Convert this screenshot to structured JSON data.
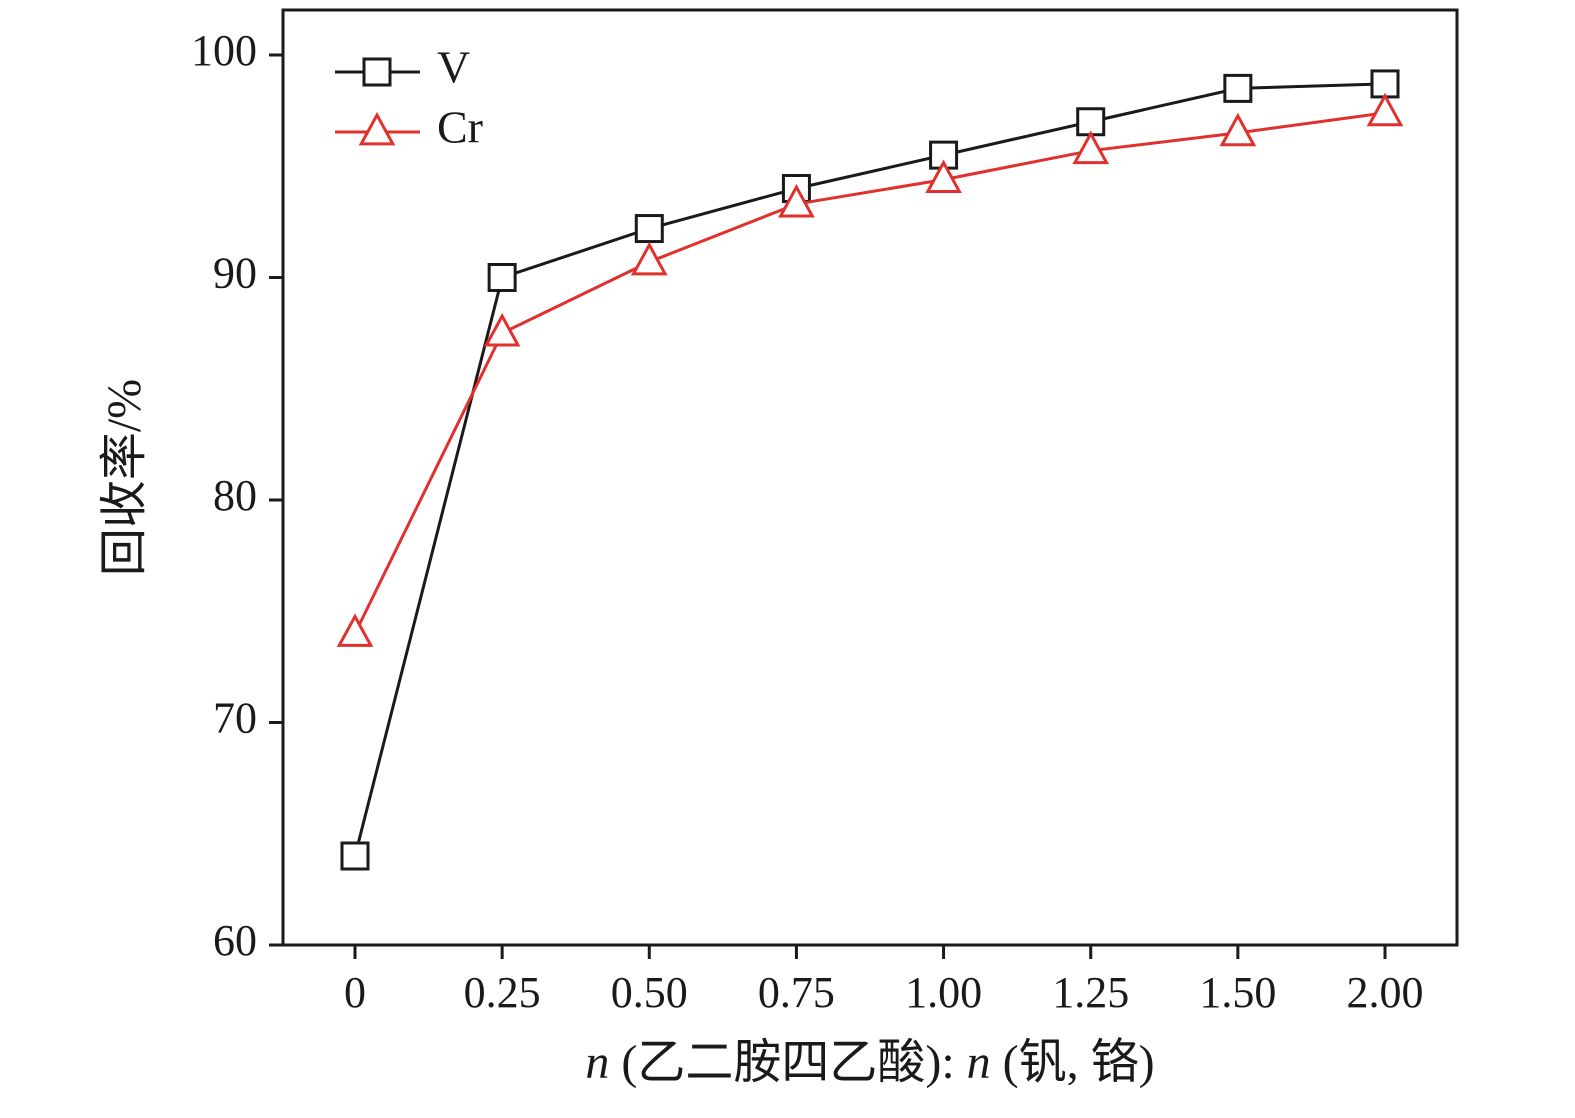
{
  "chart_data": {
    "type": "line",
    "title": "",
    "categories": [
      "0",
      "0.25",
      "0.50",
      "0.75",
      "1.00",
      "1.25",
      "1.50",
      "2.00"
    ],
    "series": [
      {
        "name": "V",
        "color": "#1a1a1a",
        "marker": "square",
        "values": [
          64.0,
          90.0,
          92.2,
          94.0,
          95.5,
          97.0,
          98.5,
          98.7
        ]
      },
      {
        "name": "Cr",
        "color": "#e0312e",
        "marker": "triangle",
        "values": [
          74.0,
          87.5,
          90.7,
          93.3,
          94.4,
          95.7,
          96.5,
          97.4
        ]
      }
    ],
    "ylabel": "回收率/%",
    "xlabel_segments": [
      {
        "text": "n",
        "italic": true
      },
      {
        "text": " (乙二胺四乙酸): ",
        "italic": false
      },
      {
        "text": "n",
        "italic": true
      },
      {
        "text": " (钒, 铬)",
        "italic": false
      }
    ],
    "ylim": [
      60,
      100
    ],
    "yticks": [
      60,
      70,
      80,
      90,
      100
    ],
    "legend_position": "top-left",
    "grid": false,
    "axis_color": "#1a1a1a",
    "background": "#ffffff"
  }
}
